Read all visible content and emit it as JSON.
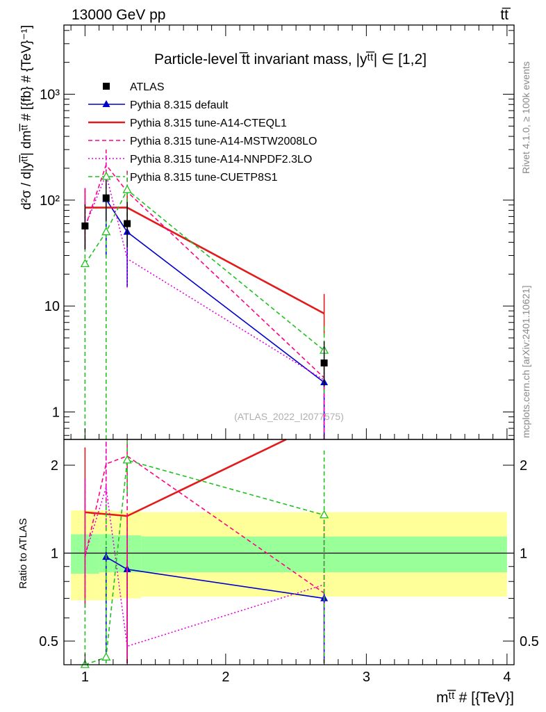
{
  "header": {
    "left": "13000 GeV pp",
    "right": "tt̅"
  },
  "side_text": {
    "rivet": "Rivet 4.1.0, ≥ 100k events",
    "mcplots": "mcplots.cern.ch [arXiv:2401.10621]"
  },
  "watermark": "(ATLAS_2022_I2077575)",
  "colors": {
    "atlas": "#000000",
    "default": "#0000cc",
    "cteql1": "#e31a1c",
    "mstw": "#ff0080",
    "nnpdf": "#e000e0",
    "cuetp": "#20c020",
    "band_outer": "#ffff99",
    "band_inner": "#99ff99"
  },
  "chart_data": {
    "type": "line",
    "title": "Particle-level t̅t invariant mass, |yᵗ̅ᵗ| ∈ [1,2]",
    "xlabel": "mᵗ̅ᵗ # [{TeV}]",
    "ylabel": "d²σ / d|yᵗ̅ᵗ| dmᵗ̅ᵗ # [{fb} # {TeV}⁻¹]",
    "ratio_ylabel": "Ratio to ATLAS",
    "xlim": [
      0.85,
      4.05
    ],
    "ylim_main": [
      0.55,
      4500
    ],
    "ylim_ratio": [
      0.415,
      2.45
    ],
    "main_ticks": [
      {
        "value": 1,
        "label": "1"
      },
      {
        "value": 10,
        "label": "10"
      },
      {
        "value": 100,
        "label": "10²"
      },
      {
        "value": 1000,
        "label": "10³"
      }
    ],
    "ratio_ticks": [
      {
        "value": 0.5,
        "label": "0.5"
      },
      {
        "value": 1,
        "label": "1"
      },
      {
        "value": 2,
        "label": "2"
      }
    ],
    "x_ticks": [
      {
        "value": 1,
        "label": "1"
      },
      {
        "value": 2,
        "label": "2"
      },
      {
        "value": 3,
        "label": "3"
      },
      {
        "value": 4,
        "label": "4"
      }
    ],
    "legend": [
      {
        "key": "atlas",
        "label": "ATLAS"
      },
      {
        "key": "default",
        "label": "Pythia 8.315 default"
      },
      {
        "key": "cteql1",
        "label": "Pythia 8.315 tune-A14-CTEQL1"
      },
      {
        "key": "mstw",
        "label": "Pythia 8.315 tune-A14-MSTW2008LO"
      },
      {
        "key": "nnpdf",
        "label": "Pythia 8.315 tune-A14-NNPDF2.3LO"
      },
      {
        "key": "cuetp",
        "label": "Pythia 8.315 tune-CUETP8S1"
      }
    ],
    "data": {
      "name": "ATLAS",
      "x": [
        1.0,
        1.15,
        1.3,
        2.7
      ],
      "xlo": [
        0.9,
        1.1,
        1.2,
        1.4
      ],
      "xhi": [
        1.1,
        1.2,
        1.4,
        4.0
      ],
      "y": [
        57,
        105,
        60,
        2.9
      ],
      "band_inner": [
        [
          0.85,
          1.16
        ],
        [
          0.86,
          1.16
        ],
        [
          0.86,
          1.15
        ],
        [
          0.86,
          1.14
        ]
      ],
      "band_outer": [
        [
          0.69,
          1.4
        ],
        [
          0.69,
          1.4
        ],
        [
          0.7,
          1.39
        ],
        [
          0.71,
          1.38
        ]
      ]
    },
    "series": [
      {
        "key": "default",
        "name": "Pythia 8.315 default",
        "style": "solid",
        "marker": "triangle-filled",
        "mode": "poly",
        "x": [
          1.15,
          1.3,
          2.7
        ],
        "y": [
          102,
          50,
          1.9
        ],
        "ylo": [
          30,
          15,
          0.3
        ],
        "yhi": [
          110,
          60,
          2.2
        ],
        "ratio": [
          0.97,
          0.88,
          0.7
        ],
        "rlo": [
          0.42,
          0.42,
          0.42
        ],
        "rhi": [
          1.05,
          0.95,
          0.75
        ]
      },
      {
        "key": "cteql1",
        "name": "Pythia 8.315 tune-A14-CTEQL1",
        "style": "solid",
        "marker": "none",
        "mode": "step",
        "x": [
          1.0,
          1.3,
          2.7
        ],
        "xlo": [
          1.0,
          1.3,
          2.7
        ],
        "xhi": [
          1.3,
          1.3,
          2.7
        ],
        "y": [
          85,
          85,
          8.5
        ],
        "ylo": [
          35,
          55,
          5.5
        ],
        "yhi": [
          130,
          110,
          13
        ],
        "ratio_x": [
          1.0,
          1.3,
          2.43
        ],
        "ratio": [
          1.38,
          1.34,
          2.45
        ],
        "rlo": [
          0.65,
          0.42,
          2.45
        ],
        "rhi": [
          2.3,
          1.34,
          2.45
        ]
      },
      {
        "key": "mstw",
        "name": "Pythia 8.315 tune-A14-MSTW2008LO",
        "style": "dashed",
        "marker": "none",
        "mode": "poly",
        "x": [
          1.0,
          1.15,
          1.3,
          2.7
        ],
        "y": [
          55,
          215,
          120,
          2.1
        ],
        "ylo": [
          35,
          130,
          60,
          0.55
        ],
        "yhi": [
          130,
          300,
          190,
          3
        ],
        "ratio": [
          0.97,
          2.02,
          2.15,
          0.73
        ],
        "rlo": [
          0.66,
          1.2,
          0.42,
          0.42
        ],
        "rhi": [
          1.8,
          2.45,
          2.45,
          1.3
        ]
      },
      {
        "key": "nnpdf",
        "name": "Pythia 8.315 tune-A14-NNPDF2.3LO",
        "style": "dotted",
        "marker": "none",
        "mode": "poly",
        "x": [
          1.0,
          1.15,
          1.3,
          2.7
        ],
        "y": [
          56,
          175,
          28,
          2.0
        ],
        "ylo": [
          35,
          130,
          15,
          0.55
        ],
        "yhi": [
          130,
          280,
          60,
          3
        ],
        "ratio": [
          0.98,
          1.68,
          0.48,
          0.78
        ],
        "rlo": [
          0.65,
          1.2,
          0.42,
          0.42
        ],
        "rhi": [
          1.8,
          2.45,
          1.2,
          1.3
        ]
      },
      {
        "key": "cuetp",
        "name": "Pythia 8.315 tune-CUETP8S1",
        "style": "dashed",
        "marker": "triangle-open",
        "mode": "poly",
        "x": [
          1.0,
          1.15,
          1.3,
          2.7
        ],
        "y": [
          25,
          50,
          125,
          3.8
        ],
        "ylo": [
          0.55,
          0.55,
          70,
          1.5
        ],
        "yhi": [
          45,
          160,
          180,
          6.5
        ],
        "ratio": [
          0.4,
          0.44,
          2.08,
          1.35
        ],
        "rlo": [
          0.42,
          0.42,
          1.6,
          0.42
        ],
        "rhi": [
          0.7,
          1.5,
          2.45,
          2.25
        ]
      }
    ]
  }
}
